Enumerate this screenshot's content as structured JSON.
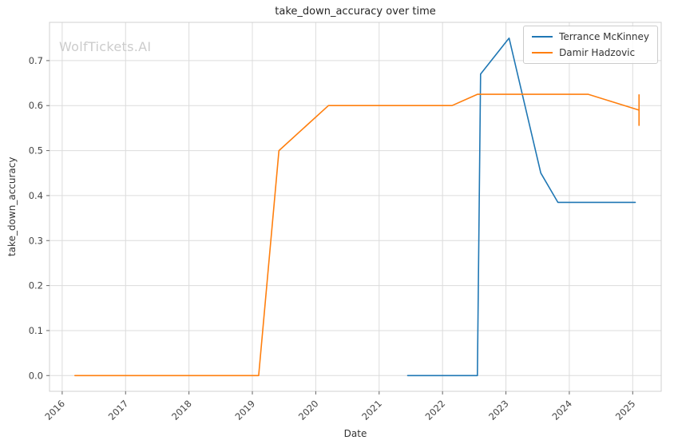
{
  "watermark": "WolfTickets.AI",
  "chart_data": {
    "type": "line",
    "title": "take_down_accuracy over time",
    "xlabel": "Date",
    "ylabel": "take_down_accuracy",
    "xlim": [
      2015.8,
      2025.45
    ],
    "ylim": [
      -0.035,
      0.785
    ],
    "xticks": [
      2016,
      2017,
      2018,
      2019,
      2020,
      2021,
      2022,
      2023,
      2024,
      2025
    ],
    "yticks": [
      0.0,
      0.1,
      0.2,
      0.3,
      0.4,
      0.5,
      0.6,
      0.7
    ],
    "grid": true,
    "legend_position": "upper right",
    "colors": {
      "grid": "#dcdcdc",
      "spine": "#d0d0d0",
      "tick_label": "#444444",
      "tick_mark": "#666666",
      "title": "#262626",
      "watermark": "#cccccc"
    },
    "series": [
      {
        "name": "Terrance McKinney",
        "color": "#1f77b4",
        "x": [
          2021.45,
          2022.55,
          2022.6,
          2023.05,
          2023.55,
          2023.82,
          2025.04
        ],
        "y": [
          0.0,
          0.0,
          0.67,
          0.75,
          0.45,
          0.385,
          0.385
        ]
      },
      {
        "name": "Damir Hadzovic",
        "color": "#ff7f0e",
        "x": [
          2016.2,
          2019.1,
          2019.42,
          2020.2,
          2022.15,
          2022.55,
          2024.3,
          2025.1
        ],
        "y": [
          0.0,
          0.0,
          0.5,
          0.6,
          0.6,
          0.625,
          0.625,
          0.59
        ]
      }
    ],
    "error_bars": [
      {
        "series": "Damir Hadzovic",
        "x": 2025.1,
        "y_low": 0.555,
        "y_high": 0.625
      }
    ]
  }
}
